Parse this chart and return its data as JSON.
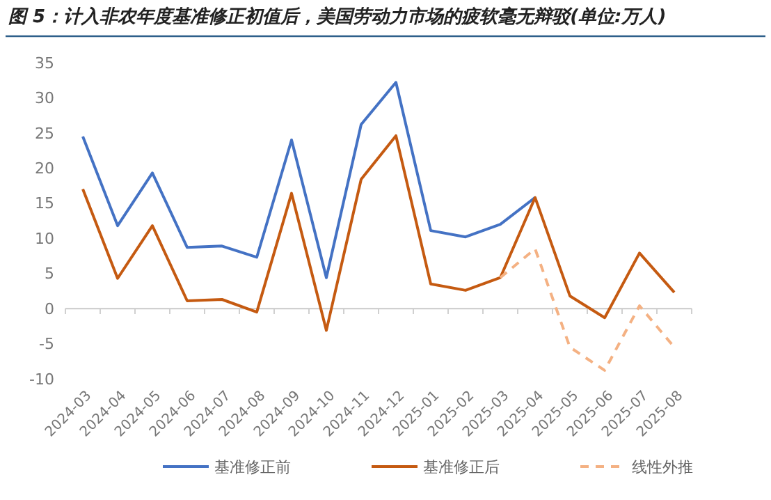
{
  "chart_data": {
    "type": "line",
    "title": "图 5：计入非农年度基准修正初值后，美国劳动力市场的疲软毫无辩驳(单位:万人)",
    "categories": [
      "2024-03",
      "2024-04",
      "2024-05",
      "2024-06",
      "2024-07",
      "2024-08",
      "2024-09",
      "2024-10",
      "2024-11",
      "2024-12",
      "2025-01",
      "2025-02",
      "2025-03",
      "2025-04",
      "2025-05",
      "2025-06",
      "2025-07",
      "2025-08"
    ],
    "series": [
      {
        "name": "基准修正前",
        "color": "#4472c4",
        "values": [
          24.5,
          11.8,
          19.3,
          8.7,
          8.9,
          7.3,
          24,
          4.4,
          26.2,
          32.2,
          11.1,
          10.2,
          12,
          15.8,
          null,
          null,
          null,
          null
        ]
      },
      {
        "name": "基准修正后",
        "color": "#c55a11",
        "values": [
          17,
          4.3,
          11.8,
          1.1,
          1.3,
          -0.5,
          16.4,
          -3.1,
          18.4,
          24.6,
          3.5,
          2.6,
          4.4,
          15.8,
          1.8,
          -1.3,
          7.9,
          2.3
        ]
      },
      {
        "name": "线性外推",
        "color": "#f4b183",
        "line_style": "dashed",
        "values": [
          null,
          null,
          null,
          null,
          null,
          null,
          null,
          null,
          null,
          null,
          null,
          null,
          4.4,
          8.5,
          -5.5,
          -8.8,
          0.4,
          -5.5
        ]
      }
    ],
    "ylim": [
      -10,
      35
    ],
    "yticks": [
      -10,
      -5,
      0,
      5,
      10,
      15,
      20,
      25,
      30,
      35
    ],
    "legend": "bottom"
  }
}
